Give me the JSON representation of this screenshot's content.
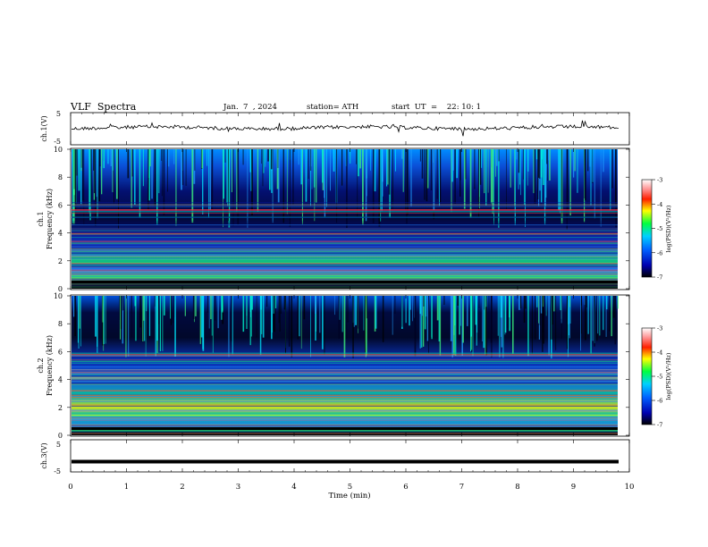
{
  "header": {
    "title": "VLF  Spectra",
    "date": "Jan.  7  , 2024",
    "station": "station= ATH",
    "start": "start  UT  =    22: 10: 1"
  },
  "chart_data": [
    {
      "type": "line",
      "panel": "ch1",
      "ylabel": "ch.1(V)",
      "ylim": [
        -5,
        5
      ],
      "yticks": [
        "5",
        "-5"
      ],
      "xlim": [
        0,
        10
      ],
      "description_values": "time series roughly -0.5 to 0.5 V with spikes"
    },
    {
      "type": "heatmap",
      "panel": "ch1-spectrogram",
      "ylabel": "Frequency  (kHz)",
      "ylabel_prefix": "ch.1",
      "ylim": [
        0,
        10
      ],
      "yticks": [
        "0",
        "2",
        "4",
        "6",
        "8",
        "10"
      ],
      "xlim": [
        0,
        10
      ],
      "data_end_min": 9.8,
      "colorbar": {
        "label": "log(PSD)(V²/Hz)",
        "range": [
          -7,
          -3
        ],
        "ticks": [
          "-3",
          "-4",
          "-5",
          "-6",
          "-7"
        ]
      }
    },
    {
      "type": "heatmap",
      "panel": "ch2-spectrogram",
      "ylabel": "Frequency  (kHz)",
      "ylabel_prefix": "ch.2",
      "ylim": [
        0,
        10
      ],
      "yticks": [
        "0",
        "2",
        "4",
        "6",
        "8",
        "10"
      ],
      "xlim": [
        0,
        10
      ],
      "data_end_min": 9.8,
      "colorbar": {
        "label": "log(PSD)(V²/Hz)",
        "range": [
          -7,
          -3
        ],
        "ticks": [
          "-3",
          "-4",
          "-5",
          "-6",
          "-7"
        ]
      }
    },
    {
      "type": "line",
      "panel": "ch3",
      "ylabel": "ch.3(V)",
      "ylim": [
        -5,
        5
      ],
      "yticks": [
        "5",
        "-5"
      ],
      "xlim": [
        0,
        10
      ],
      "value": -1.8
    }
  ],
  "xaxis": {
    "label": "Time  (min)",
    "ticks": [
      "0",
      "1",
      "2",
      "3",
      "4",
      "5",
      "6",
      "7",
      "8",
      "9",
      "10"
    ]
  }
}
